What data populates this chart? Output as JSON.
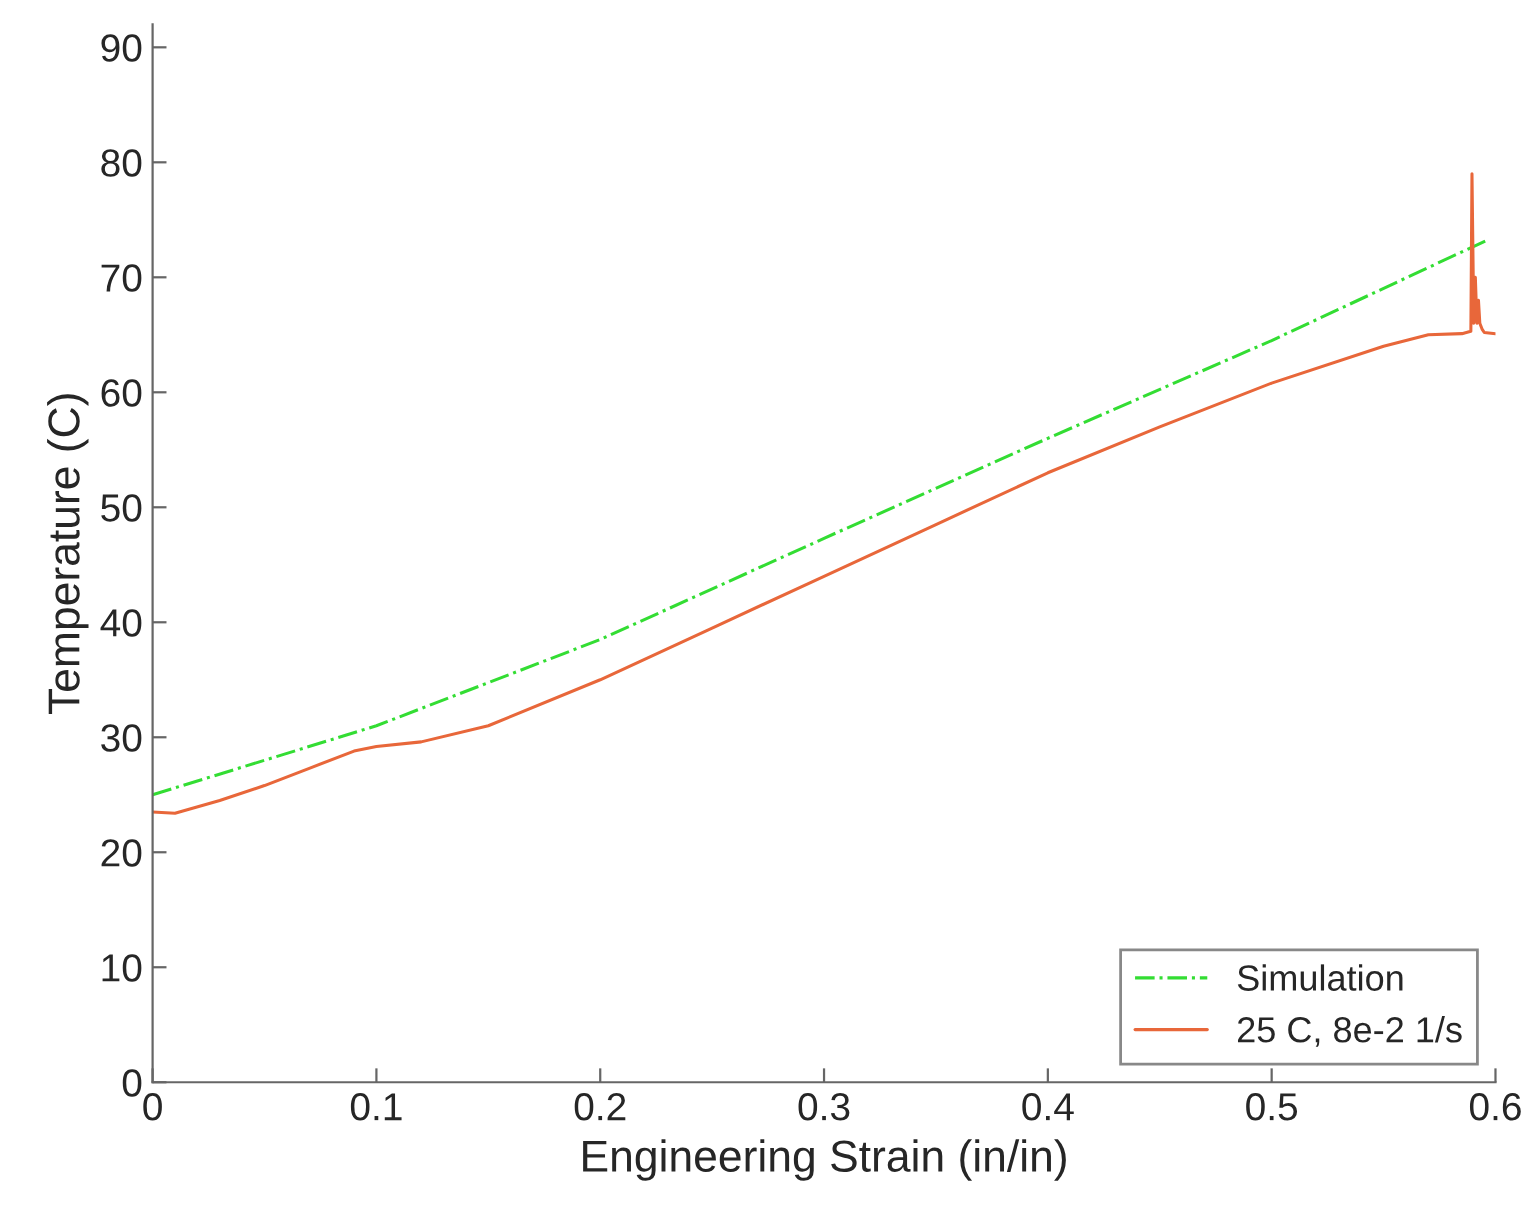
{
  "chart_data": {
    "type": "line",
    "xlabel": "Engineering Strain (in/in)",
    "ylabel": "Temperature (C)",
    "xlim": [
      0,
      0.6
    ],
    "ylim": [
      0,
      92
    ],
    "xticks": [
      0,
      0.1,
      0.2,
      0.3,
      0.4,
      0.5,
      0.6
    ],
    "yticks": [
      0,
      10,
      20,
      30,
      40,
      50,
      60,
      70,
      80,
      90
    ],
    "grid": false,
    "legend": "bottom right",
    "series": [
      {
        "name": "Simulation",
        "color": "#33dd33",
        "line_style": "dashdot",
        "x": [
          0,
          0.1,
          0.2,
          0.3,
          0.4,
          0.5,
          0.597
        ],
        "values": [
          25,
          31,
          38.5,
          47.3,
          56,
          64.5,
          73.3
        ]
      },
      {
        "name": "25 C, 8e-2 1/s",
        "color": "#e8673a",
        "line_style": "solid",
        "x": [
          0,
          0.01,
          0.03,
          0.05,
          0.07,
          0.09,
          0.1,
          0.12,
          0.15,
          0.2,
          0.25,
          0.3,
          0.35,
          0.4,
          0.45,
          0.5,
          0.55,
          0.57,
          0.585,
          0.589,
          0.5895,
          0.5903,
          0.591,
          0.5917,
          0.5924,
          0.593,
          0.594,
          0.595,
          0.6
        ],
        "values": [
          23.5,
          23.4,
          24.5,
          25.8,
          27.3,
          28.8,
          29.2,
          29.6,
          31,
          35,
          39.5,
          44,
          48.5,
          53,
          57,
          60.8,
          64,
          65,
          65.1,
          65.3,
          79,
          66,
          70,
          66,
          68,
          66,
          65.5,
          65.2,
          65.1
        ]
      }
    ]
  }
}
